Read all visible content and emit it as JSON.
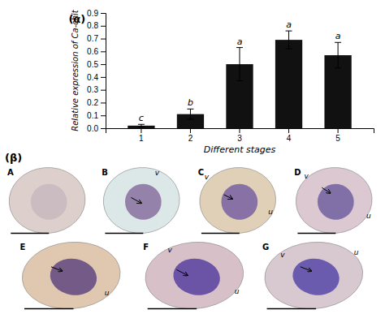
{
  "chart_data": {
    "type": "bar",
    "categories": [
      "1",
      "2",
      "3",
      "4",
      "5"
    ],
    "values": [
      0.02,
      0.11,
      0.5,
      0.69,
      0.57
    ],
    "errors": [
      0.01,
      0.04,
      0.13,
      0.07,
      0.1
    ],
    "significance": [
      "c",
      "b",
      "a",
      "a",
      "a"
    ],
    "color": "#111111",
    "xlabel": "Different stages",
    "ylabel": "Relative expression of Ca-chit",
    "ylim": [
      0,
      0.9
    ],
    "yticks": [
      {
        "value": 0.0,
        "label": "0.0"
      },
      0.1,
      0.2,
      0.3,
      0.4,
      0.5,
      0.6,
      0.7,
      0.8,
      0.9
    ],
    "grid": false,
    "annotations": [
      "(α)",
      "(β)",
      "A",
      "B",
      "v",
      "C",
      "v",
      "u",
      "D",
      "v",
      "u",
      "E",
      "u",
      "F",
      "v",
      "u",
      "G",
      "v",
      "u"
    ]
  }
}
